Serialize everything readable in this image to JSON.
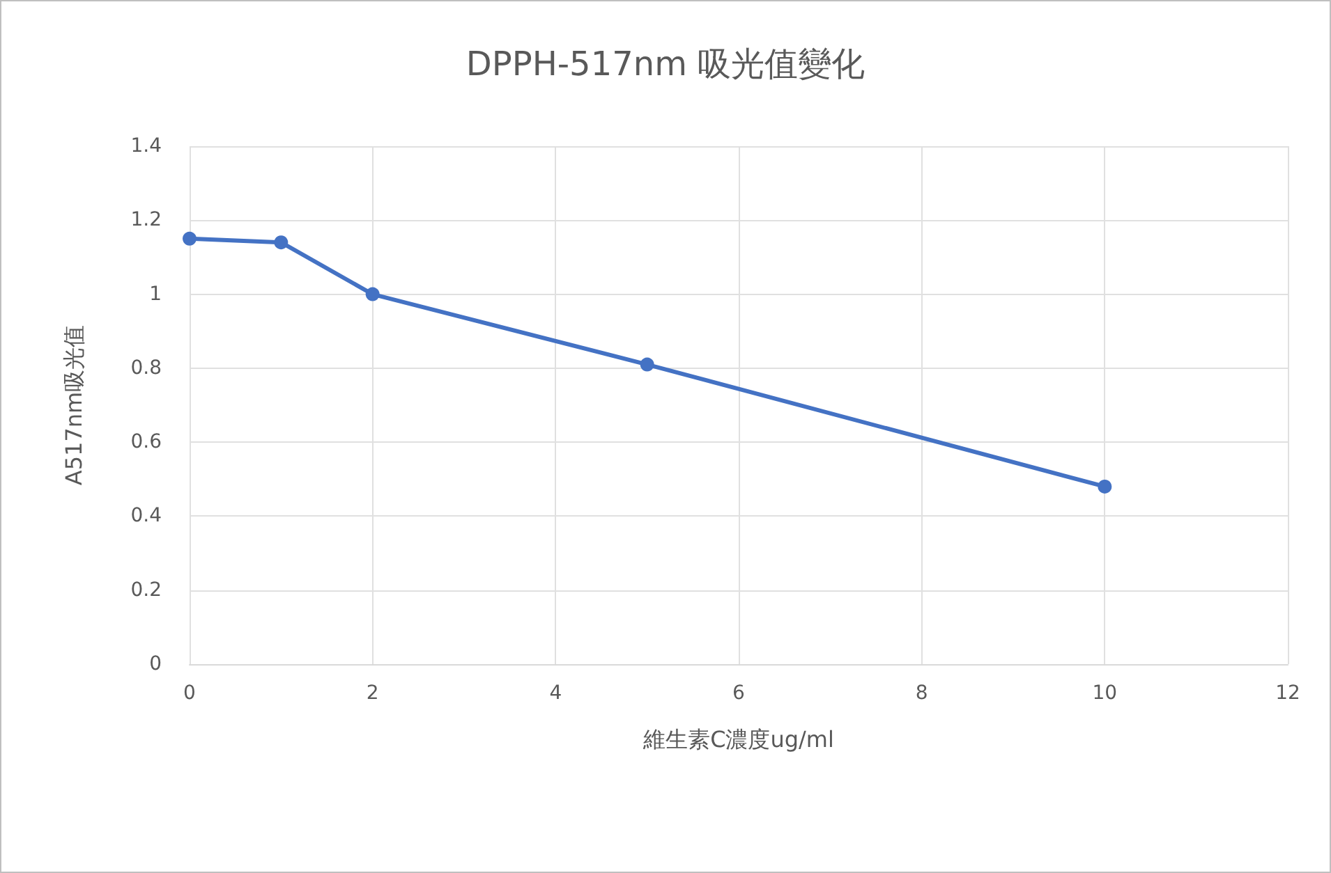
{
  "chart_data": {
    "type": "line",
    "title": "DPPH-517nm 吸光值變化",
    "xlabel": "維生素C濃度ug/ml",
    "ylabel": "A517nm吸光值",
    "x": [
      0,
      1,
      2,
      5,
      10
    ],
    "series": [
      {
        "color": "#4472c4",
        "values": [
          1.15,
          1.14,
          1.0,
          0.81,
          0.48
        ]
      }
    ],
    "xlim": [
      0,
      12
    ],
    "xticks": [
      0,
      2,
      4,
      6,
      8,
      10,
      12
    ],
    "ylim": [
      0,
      1.4
    ],
    "yticks": [
      0,
      0.2,
      0.4,
      0.6,
      0.8,
      1,
      1.2,
      1.4
    ],
    "grid": true,
    "marker": "circle",
    "line_style": "solid"
  }
}
